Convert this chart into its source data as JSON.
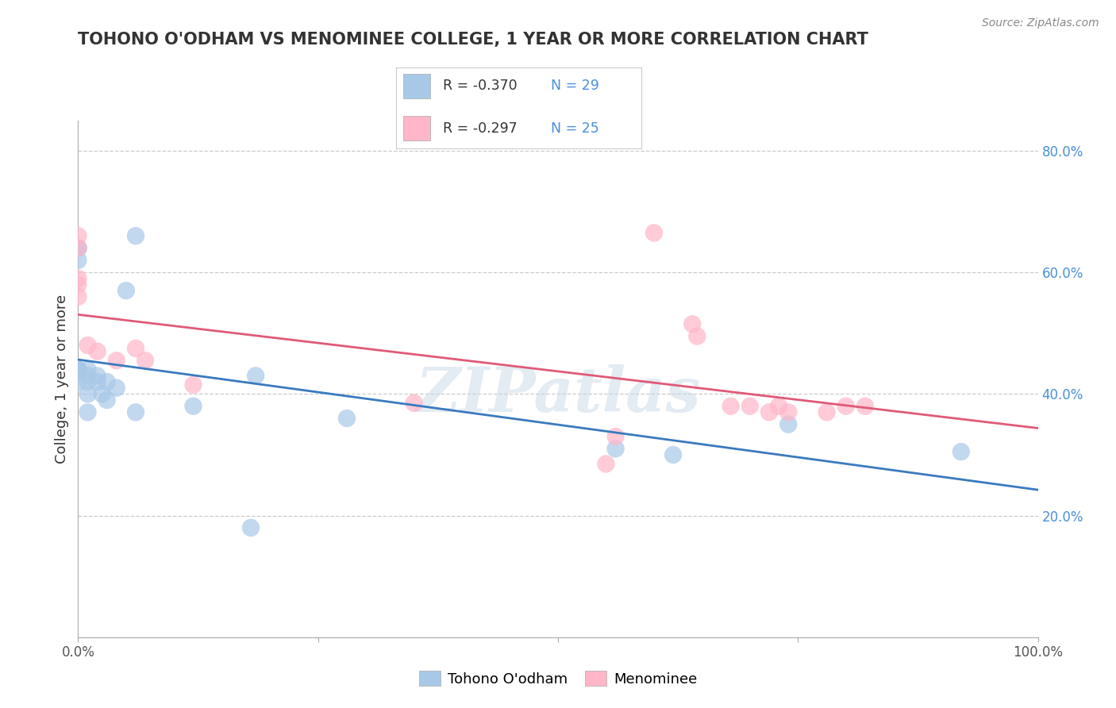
{
  "title": "TOHONO O'ODHAM VS MENOMINEE COLLEGE, 1 YEAR OR MORE CORRELATION CHART",
  "source_text": "Source: ZipAtlas.com",
  "ylabel": "College, 1 year or more",
  "xlim": [
    0.0,
    1.0
  ],
  "ylim": [
    0.0,
    0.85
  ],
  "ytick_labels_right": [
    "20.0%",
    "40.0%",
    "60.0%",
    "80.0%"
  ],
  "ytick_values_right": [
    0.2,
    0.4,
    0.6,
    0.8
  ],
  "legend_r1": "R = -0.370",
  "legend_n1": "N = 29",
  "legend_r2": "R = -0.297",
  "legend_n2": "N = 25",
  "color_blue": "#a8c8e8",
  "color_pink": "#ffb6c8",
  "color_blue_line": "#3a7abf",
  "color_pink_line": "#e05a78",
  "color_grid": "#cccccc",
  "color_title": "#333333",
  "color_legend_num": "#4a90d9",
  "background_color": "#ffffff",
  "watermark": "ZIPatlas",
  "tohono_x": [
    0.0,
    0.0,
    0.0,
    0.0,
    0.0,
    0.0,
    0.0,
    0.01,
    0.01,
    0.01,
    0.01,
    0.01,
    0.02,
    0.02,
    0.025,
    0.03,
    0.03,
    0.04,
    0.05,
    0.06,
    0.06,
    0.12,
    0.18,
    0.185,
    0.28,
    0.56,
    0.62,
    0.74,
    0.92
  ],
  "tohono_y": [
    0.64,
    0.64,
    0.62,
    0.44,
    0.44,
    0.44,
    0.42,
    0.44,
    0.43,
    0.42,
    0.4,
    0.37,
    0.43,
    0.42,
    0.4,
    0.42,
    0.39,
    0.41,
    0.57,
    0.66,
    0.37,
    0.38,
    0.18,
    0.43,
    0.36,
    0.31,
    0.3,
    0.35,
    0.305
  ],
  "menominee_x": [
    0.0,
    0.0,
    0.0,
    0.0,
    0.0,
    0.01,
    0.02,
    0.04,
    0.06,
    0.07,
    0.12,
    0.35,
    0.55,
    0.56,
    0.6,
    0.64,
    0.645,
    0.68,
    0.7,
    0.72,
    0.73,
    0.74,
    0.78,
    0.8,
    0.82
  ],
  "menominee_y": [
    0.66,
    0.64,
    0.59,
    0.58,
    0.56,
    0.48,
    0.47,
    0.455,
    0.475,
    0.455,
    0.415,
    0.385,
    0.285,
    0.33,
    0.665,
    0.515,
    0.495,
    0.38,
    0.38,
    0.37,
    0.38,
    0.37,
    0.37,
    0.38,
    0.38
  ]
}
